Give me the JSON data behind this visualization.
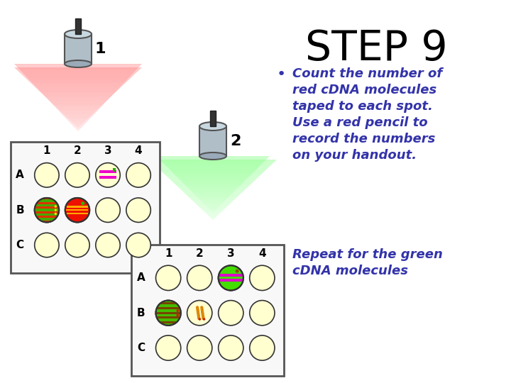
{
  "title": "STEP 9",
  "title_fontsize": 42,
  "bullet1": "Count the number of\nred cDNA molecules\ntaped to each spot.\nUse a red pencil to\nrecord the numbers\non your handout.",
  "bullet2": "Repeat for the green\ncDNA molecules",
  "bullet_color": "#3333aa",
  "bullet_fontsize": 13.0,
  "bg_color": "#ffffff",
  "grid_rows": [
    "A",
    "B",
    "C"
  ],
  "grid_cols": [
    "1",
    "2",
    "3",
    "4"
  ],
  "circle_bg": "#ffffd0",
  "circle_edge": "#333333",
  "top_special_cells": {
    "A3": "pink_stripes",
    "B1": "green_red_full",
    "B2": "red_full"
  },
  "bot_special_cells": {
    "A3": "green_full_pink",
    "B1": "green_brown_full",
    "B2": "yellow_pencils"
  }
}
